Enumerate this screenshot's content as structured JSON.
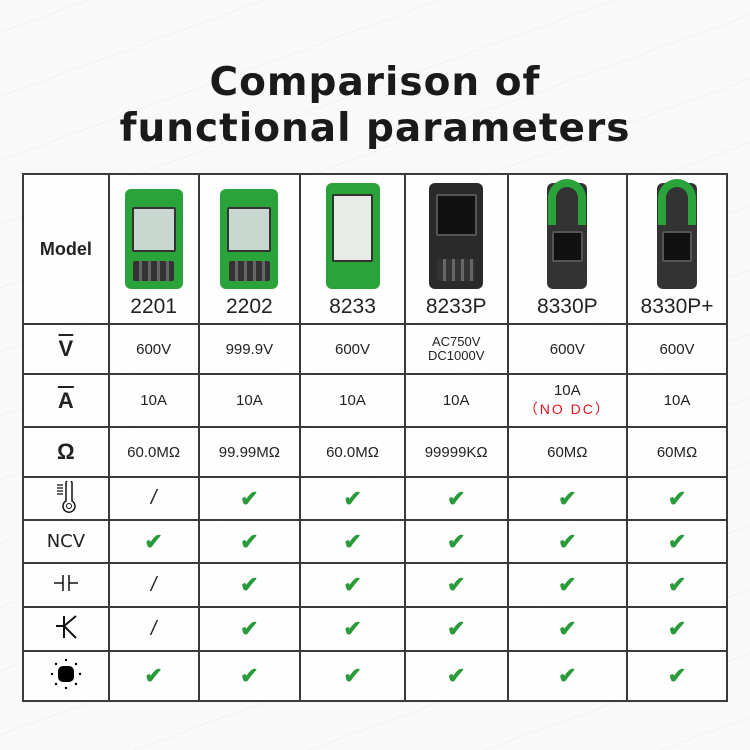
{
  "title_line1": "Comparison of",
  "title_line2": "functional parameters",
  "header": {
    "model_label": "Model",
    "models": [
      "2201",
      "2202",
      "8233",
      "8233P",
      "8330P",
      "8330P+"
    ]
  },
  "colors": {
    "check": "#2a9a3a",
    "warning": "#e0141e",
    "device_green": "#2aa43a"
  },
  "rows": [
    {
      "icon": "ac-dc-voltage-icon",
      "label": "V",
      "values": [
        "600V",
        "999.9V",
        "600V",
        "AC750V DC1000V",
        "600V",
        "600V"
      ]
    },
    {
      "icon": "ac-dc-current-icon",
      "label": "A",
      "values": [
        "10A",
        "10A",
        "10A",
        "10A",
        "10A",
        "10A"
      ],
      "note": {
        "col": 4,
        "text": "（NO DC）"
      }
    },
    {
      "icon": "ohm-icon",
      "label": "Ω",
      "values": [
        "60.0MΩ",
        "99.99MΩ",
        "60.0MΩ",
        "99999KΩ",
        "60MΩ",
        "60MΩ"
      ]
    },
    {
      "icon": "thermometer-icon",
      "values": [
        "/",
        "✔",
        "✔",
        "✔",
        "✔",
        "✔"
      ]
    },
    {
      "icon": "ncv-icon",
      "label": "NCV",
      "values": [
        "✔",
        "✔",
        "✔",
        "✔",
        "✔",
        "✔"
      ]
    },
    {
      "icon": "capacitor-icon",
      "values": [
        "/",
        "✔",
        "✔",
        "✔",
        "✔",
        "✔"
      ]
    },
    {
      "icon": "transistor-icon",
      "values": [
        "/",
        "✔",
        "✔",
        "✔",
        "✔",
        "✔"
      ]
    },
    {
      "icon": "flashlight-icon",
      "values": [
        "✔",
        "✔",
        "✔",
        "✔",
        "✔",
        "✔"
      ]
    }
  ]
}
